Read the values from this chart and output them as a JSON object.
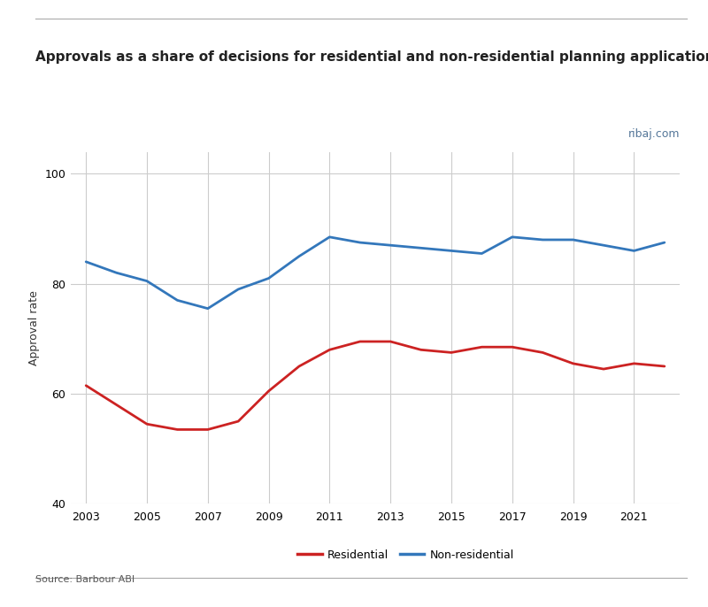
{
  "title": "Approvals as a share of decisions for residential and non-residential planning applications",
  "ylabel": "Approval rate",
  "source": "Source: Barbour ABI",
  "watermark": "ribaj.com",
  "years": [
    2003,
    2004,
    2005,
    2006,
    2007,
    2008,
    2009,
    2010,
    2011,
    2012,
    2013,
    2014,
    2015,
    2016,
    2017,
    2018,
    2019,
    2020,
    2021,
    2022
  ],
  "residential": [
    61.5,
    58.0,
    54.5,
    53.5,
    53.5,
    55.0,
    60.5,
    65.0,
    68.0,
    69.5,
    69.5,
    68.0,
    67.5,
    68.5,
    68.5,
    67.5,
    65.5,
    64.5,
    65.5,
    65.0
  ],
  "non_residential": [
    84.0,
    82.0,
    80.5,
    77.0,
    75.5,
    79.0,
    81.0,
    85.0,
    88.5,
    87.5,
    87.0,
    86.5,
    86.0,
    85.5,
    88.5,
    88.0,
    88.0,
    87.0,
    86.0,
    87.5
  ],
  "residential_color": "#cc2222",
  "non_residential_color": "#3377bb",
  "ylim": [
    40,
    104
  ],
  "yticks": [
    40,
    60,
    80,
    100
  ],
  "xticks": [
    2003,
    2005,
    2007,
    2009,
    2011,
    2013,
    2015,
    2017,
    2019,
    2021
  ],
  "grid_color": "#cccccc",
  "background_color": "#ffffff",
  "title_fontsize": 11,
  "label_fontsize": 9,
  "tick_fontsize": 9,
  "legend_fontsize": 9,
  "source_fontsize": 8,
  "watermark_fontsize": 9,
  "line_width": 2.0
}
